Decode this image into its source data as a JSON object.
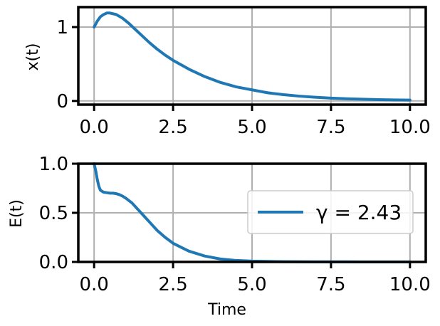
{
  "chart_data": [
    {
      "type": "line",
      "ylabel": "x(t)",
      "xlabel": "",
      "xlim": [
        -0.5,
        10.5
      ],
      "ylim": [
        -0.05,
        1.27
      ],
      "xticks": [
        0.0,
        2.5,
        5.0,
        7.5,
        10.0
      ],
      "xtick_labels": [
        "0.0",
        "2.5",
        "5.0",
        "7.5",
        "10.0"
      ],
      "yticks": [
        0,
        1
      ],
      "ytick_labels": [
        "0",
        "1"
      ],
      "grid": true,
      "legend": false,
      "series": [
        {
          "color": "#1f77b4",
          "x": [
            0.0,
            0.1,
            0.2,
            0.3,
            0.4,
            0.5,
            0.7,
            0.9,
            1.1,
            1.3,
            1.5,
            1.75,
            2.0,
            2.25,
            2.5,
            3.0,
            3.5,
            4.0,
            4.5,
            5.0,
            5.5,
            6.0,
            6.5,
            7.0,
            7.5,
            8.0,
            8.5,
            9.0,
            9.5,
            10.0
          ],
          "y": [
            1.0,
            1.08,
            1.14,
            1.17,
            1.19,
            1.19,
            1.17,
            1.12,
            1.05,
            0.97,
            0.89,
            0.79,
            0.7,
            0.62,
            0.55,
            0.43,
            0.33,
            0.25,
            0.19,
            0.15,
            0.11,
            0.085,
            0.065,
            0.05,
            0.038,
            0.03,
            0.023,
            0.018,
            0.014,
            0.011
          ]
        }
      ]
    },
    {
      "type": "line",
      "ylabel": "E(t)",
      "xlabel": "Time",
      "xlim": [
        -0.5,
        10.5
      ],
      "ylim": [
        0.0,
        1.0
      ],
      "xticks": [
        0.0,
        2.5,
        5.0,
        7.5,
        10.0
      ],
      "xtick_labels": [
        "0.0",
        "2.5",
        "5.0",
        "7.5",
        "10.0"
      ],
      "yticks": [
        0.0,
        0.5,
        1.0
      ],
      "ytick_labels": [
        "0.0",
        "0.5",
        "1.0"
      ],
      "grid": true,
      "legend": true,
      "legend_position": "center-right",
      "series": [
        {
          "name": "γ = 2.43",
          "color": "#1f77b4",
          "x": [
            0.0,
            0.05,
            0.1,
            0.15,
            0.2,
            0.3,
            0.4,
            0.5,
            0.6,
            0.7,
            0.8,
            0.9,
            1.0,
            1.2,
            1.4,
            1.6,
            1.8,
            2.0,
            2.25,
            2.5,
            3.0,
            3.5,
            4.0,
            4.5,
            5.0,
            6.0,
            7.0,
            8.0,
            9.0,
            10.0
          ],
          "y": [
            1.0,
            0.93,
            0.84,
            0.77,
            0.73,
            0.71,
            0.705,
            0.7,
            0.7,
            0.695,
            0.685,
            0.67,
            0.65,
            0.6,
            0.53,
            0.46,
            0.39,
            0.32,
            0.25,
            0.19,
            0.11,
            0.06,
            0.03,
            0.015,
            0.008,
            0.003,
            0.001,
            0.0005,
            0.0002,
            0.0001
          ]
        }
      ]
    }
  ]
}
